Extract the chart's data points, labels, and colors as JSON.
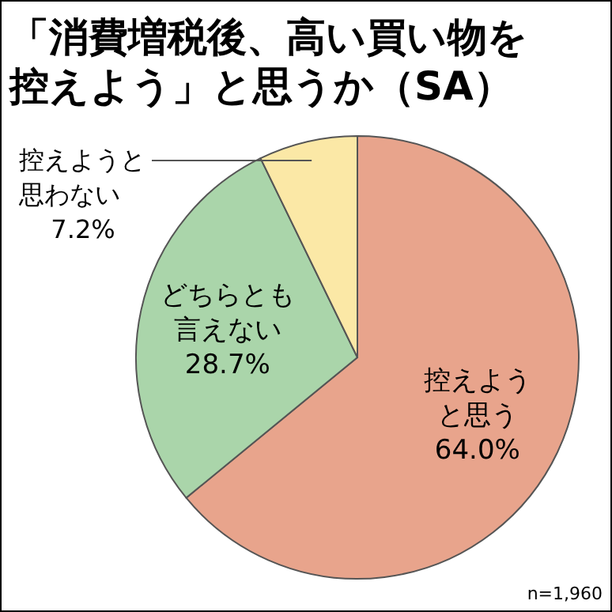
{
  "chart_data": {
    "type": "pie",
    "title": "「消費増税後、高い買い物を控えよう」と思うか（SA）",
    "categories": [
      "控えようと思う",
      "どちらとも言えない",
      "控えようと思わない"
    ],
    "values": [
      64.0,
      28.7,
      7.2
    ],
    "value_labels": [
      "64.0%",
      "28.7%",
      "7.2%"
    ],
    "colors": [
      "#e8a48c",
      "#aad5aa",
      "#fbe8a6"
    ],
    "annotations": [
      "n=1,960"
    ]
  }
}
